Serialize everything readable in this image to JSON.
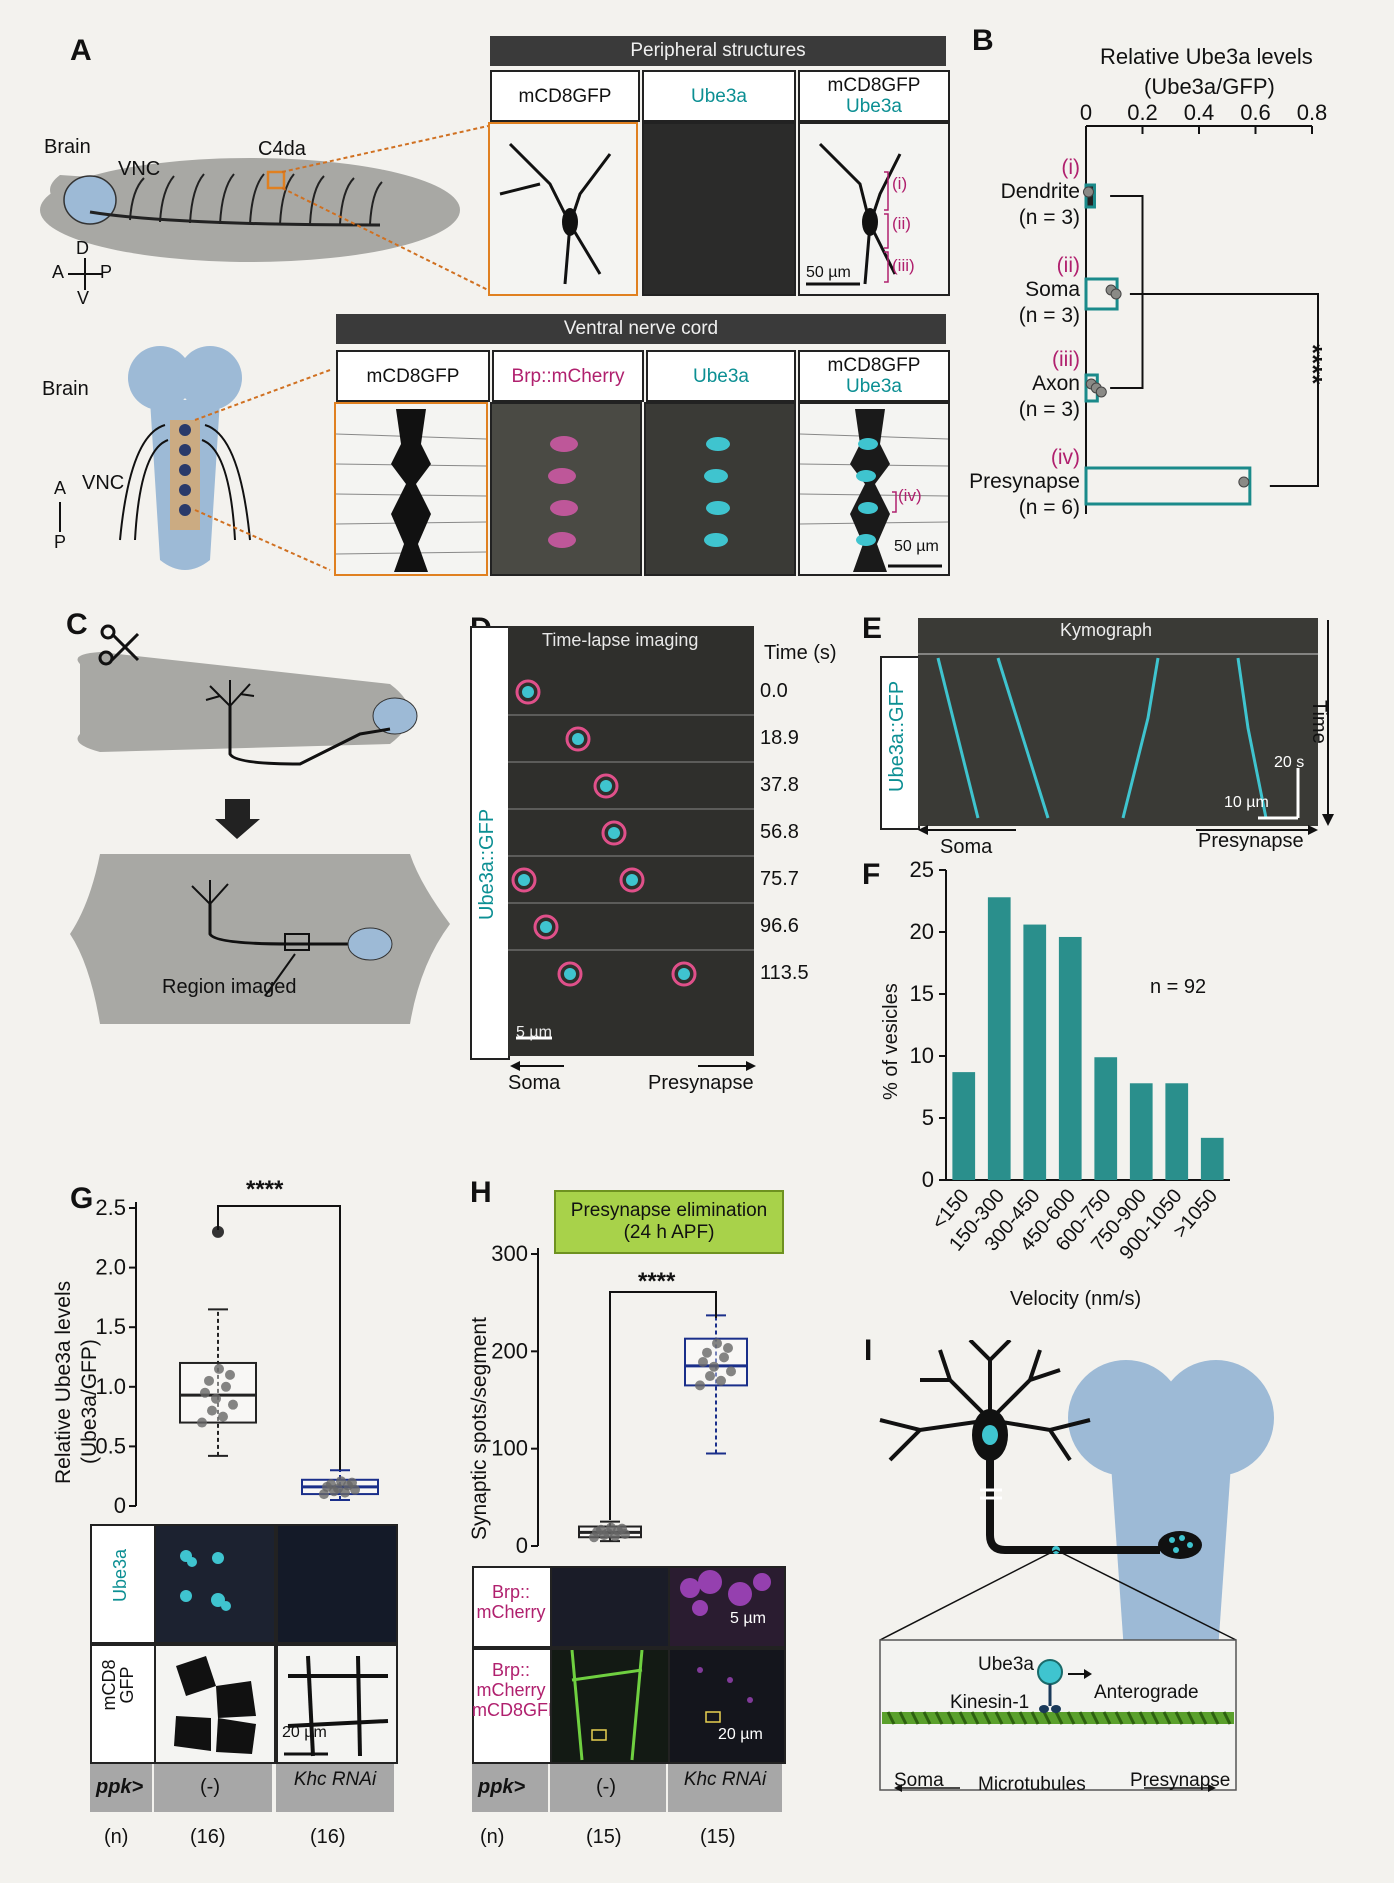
{
  "panel_letters": [
    "A",
    "B",
    "C",
    "D",
    "E",
    "F",
    "G",
    "H",
    "I"
  ],
  "panelA": {
    "larva_labels": {
      "brain": "Brain",
      "vnc": "VNC",
      "c4da": "C4da",
      "d": "D",
      "v": "V",
      "a": "A",
      "p": "P"
    },
    "vnc_labels": {
      "brain": "Brain",
      "vnc": "VNC",
      "a": "A",
      "p": "P"
    },
    "peripheral_header": "Peripheral structures",
    "peripheral_cols": [
      "mCD8GFP",
      "Ube3a",
      "mCD8GFP",
      "Ube3a"
    ],
    "peripheral_regions": [
      "(i)",
      "(ii)",
      "(iii)"
    ],
    "peripheral_scale": "50 µm",
    "vnc_header": "Ventral nerve cord",
    "vnc_cols": [
      "mCD8GFP",
      "Brp::mCherry",
      "Ube3a",
      "mCD8GFP",
      "Ube3a"
    ],
    "vnc_region": "(iv)",
    "vnc_scale": "50 µm"
  },
  "panelB": {
    "title_line1": "Relative Ube3a levels",
    "title_line2": "(Ube3a/GFP)",
    "stars": "****",
    "chart_data": {
      "type": "bar",
      "orientation": "horizontal",
      "xlim": [
        0,
        0.8
      ],
      "xticks": [
        "0",
        "0.2",
        "0.4",
        "0.6",
        "0.8"
      ],
      "categories": [
        {
          "roman": "(i)",
          "name": "Dendrite",
          "n": "(n = 3)",
          "value": 0.03
        },
        {
          "roman": "(ii)",
          "name": "Soma",
          "n": "(n = 3)",
          "value": 0.11
        },
        {
          "roman": "(iii)",
          "name": "Axon",
          "n": "(n = 3)",
          "value": 0.04
        },
        {
          "roman": "(iv)",
          "name": "Presynapse",
          "n": "(n = 6)",
          "value": 0.58
        }
      ]
    }
  },
  "panelC": {
    "region_label": "Region imaged"
  },
  "panelD": {
    "header": "Time-lapse imaging",
    "side_label": "Ube3a::GFP",
    "time_label": "Time (s)",
    "times": [
      "0.0",
      "18.9",
      "37.8",
      "56.8",
      "75.7",
      "96.6",
      "113.5"
    ],
    "scale": "5 µm",
    "soma": "Soma",
    "presynapse": "Presynapse"
  },
  "panelE": {
    "header": "Kymograph",
    "side_label": "Ube3a::GFP",
    "time_label": "Time",
    "scale_t": "20 s",
    "scale_x": "10 µm",
    "soma": "Soma",
    "presynapse": "Presynapse"
  },
  "panelF": {
    "n_label": "n = 92",
    "chart_data": {
      "type": "bar",
      "xlabel": "Velocity (nm/s)",
      "ylabel": "% of vesicles",
      "ylim": [
        0,
        25
      ],
      "yticks": [
        "0",
        "5",
        "10",
        "15",
        "20",
        "25"
      ],
      "categories": [
        "<150",
        "150-300",
        "300-450",
        "450-600",
        "600-750",
        "750-900",
        "900-1050",
        ">1050"
      ],
      "values": [
        8.7,
        22.8,
        20.6,
        19.6,
        9.9,
        7.8,
        7.8,
        3.4
      ],
      "color": "#2a8f8c"
    }
  },
  "panelG": {
    "ylabel1": "Relative Ube3a levels",
    "ylabel2": "(Ube3a/GFP)",
    "stars": "****",
    "yticks": [
      "0",
      "0.5",
      "1.0",
      "1.5",
      "2.0",
      "2.5"
    ],
    "chart_data": {
      "type": "box",
      "ylim": [
        0,
        2.5
      ],
      "groups": [
        {
          "label": "(-)",
          "n": "(16)",
          "q1": 0.7,
          "median": 0.93,
          "q3": 1.2,
          "whisker_low": 0.42,
          "whisker_high": 1.65,
          "outlier": 2.3
        },
        {
          "label": "Khc RNAi",
          "n": "(16)",
          "q1": 0.1,
          "median": 0.16,
          "q3": 0.22,
          "whisker_low": 0.05,
          "whisker_high": 0.3
        }
      ]
    },
    "row_labels": [
      "Ube3a",
      "mCD8 GFP"
    ],
    "scale": "20 µm",
    "genotype_label": "ppk>",
    "genotypes": [
      "(-)",
      "Khc RNAi"
    ],
    "n_label": "(n)",
    "n_values": [
      "(16)",
      "(16)"
    ]
  },
  "panelH": {
    "banner_line1": "Presynapse elimination",
    "banner_line2": "(24 h APF)",
    "ylabel": "Synaptic spots/segment",
    "stars": "****",
    "yticks": [
      "0",
      "100",
      "200",
      "300"
    ],
    "chart_data": {
      "type": "box",
      "ylim": [
        0,
        300
      ],
      "groups": [
        {
          "label": "(-)",
          "n": "(15)",
          "q1": 9,
          "median": 14,
          "q3": 20,
          "whisker_low": 5,
          "whisker_high": 25
        },
        {
          "label": "Khc RNAi",
          "n": "(15)",
          "q1": 165,
          "median": 185,
          "q3": 213,
          "whisker_low": 95,
          "whisker_high": 237
        }
      ]
    },
    "row_labels": [
      "Brp:: mCherry",
      "Brp:: mCherry mCD8GFP"
    ],
    "scale_top": "5 µm",
    "scale_bottom": "20 µm",
    "genotype_label": "ppk>",
    "genotypes": [
      "(-)",
      "Khc RNAi"
    ],
    "n_label": "(n)",
    "n_values": [
      "(15)",
      "(15)"
    ]
  },
  "panelI": {
    "ube3a": "Ube3a",
    "kinesin": "Kinesin-1",
    "anterograde": "Anterograde",
    "soma": "Soma",
    "microtubules": "Microtubules",
    "presynapse": "Presynapse"
  }
}
